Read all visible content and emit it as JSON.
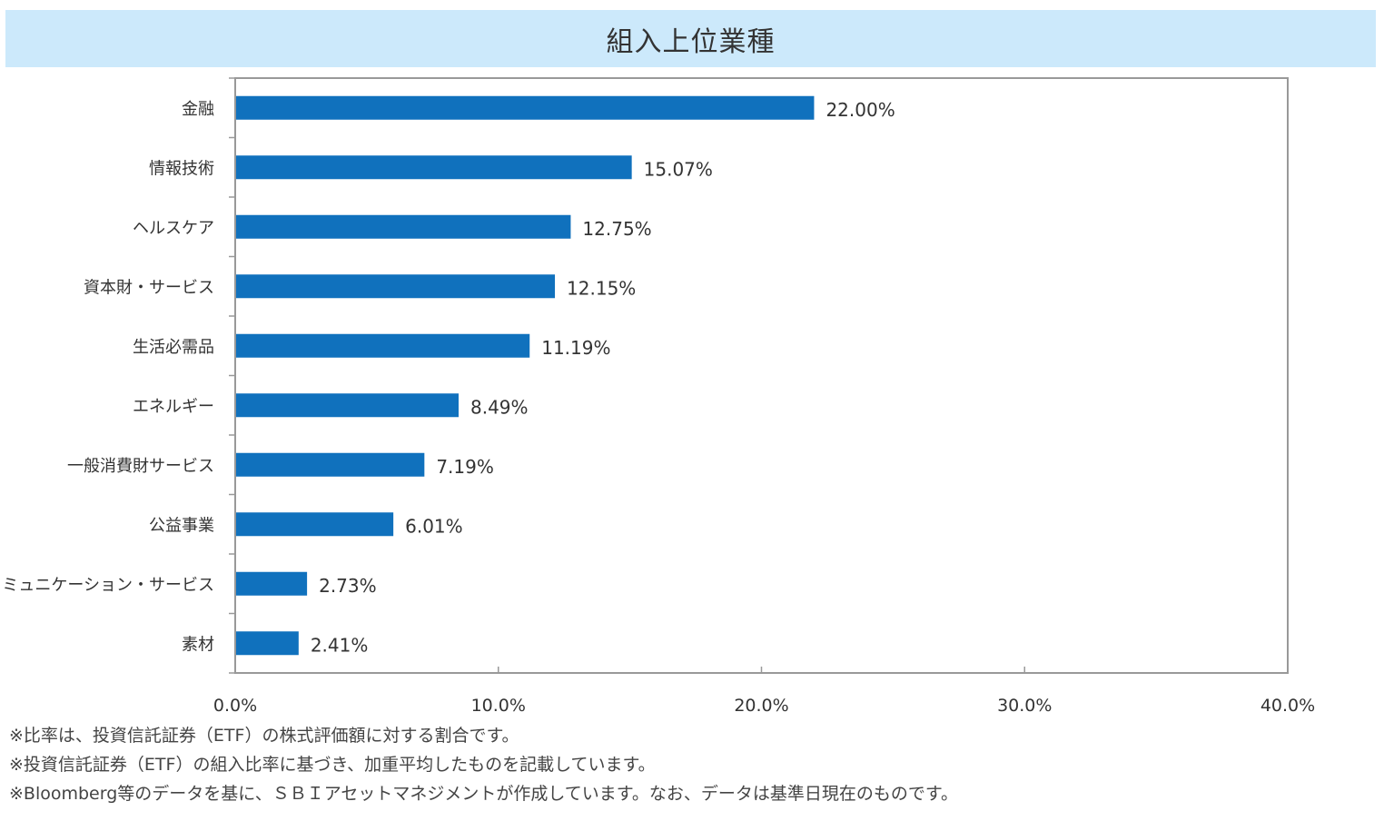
{
  "chart_data": {
    "type": "bar",
    "orientation": "horizontal",
    "title": "組入上位業種",
    "categories": [
      "金融",
      "情報技術",
      "ヘルスケア",
      "資本財・サービス",
      "生活必需品",
      "エネルギー",
      "一般消費財サービス",
      "公益事業",
      "コミュニケーション・サービス",
      "素材"
    ],
    "values": [
      22.0,
      15.07,
      12.75,
      12.15,
      11.19,
      8.49,
      7.19,
      6.01,
      2.73,
      2.41
    ],
    "value_labels": [
      "22.00%",
      "15.07%",
      "12.75%",
      "12.15%",
      "11.19%",
      "8.49%",
      "7.19%",
      "6.01%",
      "2.73%",
      "2.41%"
    ],
    "xlim": [
      0,
      40
    ],
    "xticks": [
      0,
      10,
      20,
      30,
      40
    ],
    "xtick_labels": [
      "0.0%",
      "10.0%",
      "20.0%",
      "30.0%",
      "40.0%"
    ],
    "grid": false,
    "bar_color": "#1071bd",
    "title_bg_color": "#cce9fb"
  },
  "notes": [
    "※比率は、投資信託証券（ETF）の株式評価額に対する割合です。",
    "※投資信託証券（ETF）の組入比率に基づき、加重平均したものを記載しています。",
    "※Bloomberg等のデータを基に、ＳＢＩアセットマネジメントが作成しています。なお、データは基準日現在のものです。"
  ]
}
